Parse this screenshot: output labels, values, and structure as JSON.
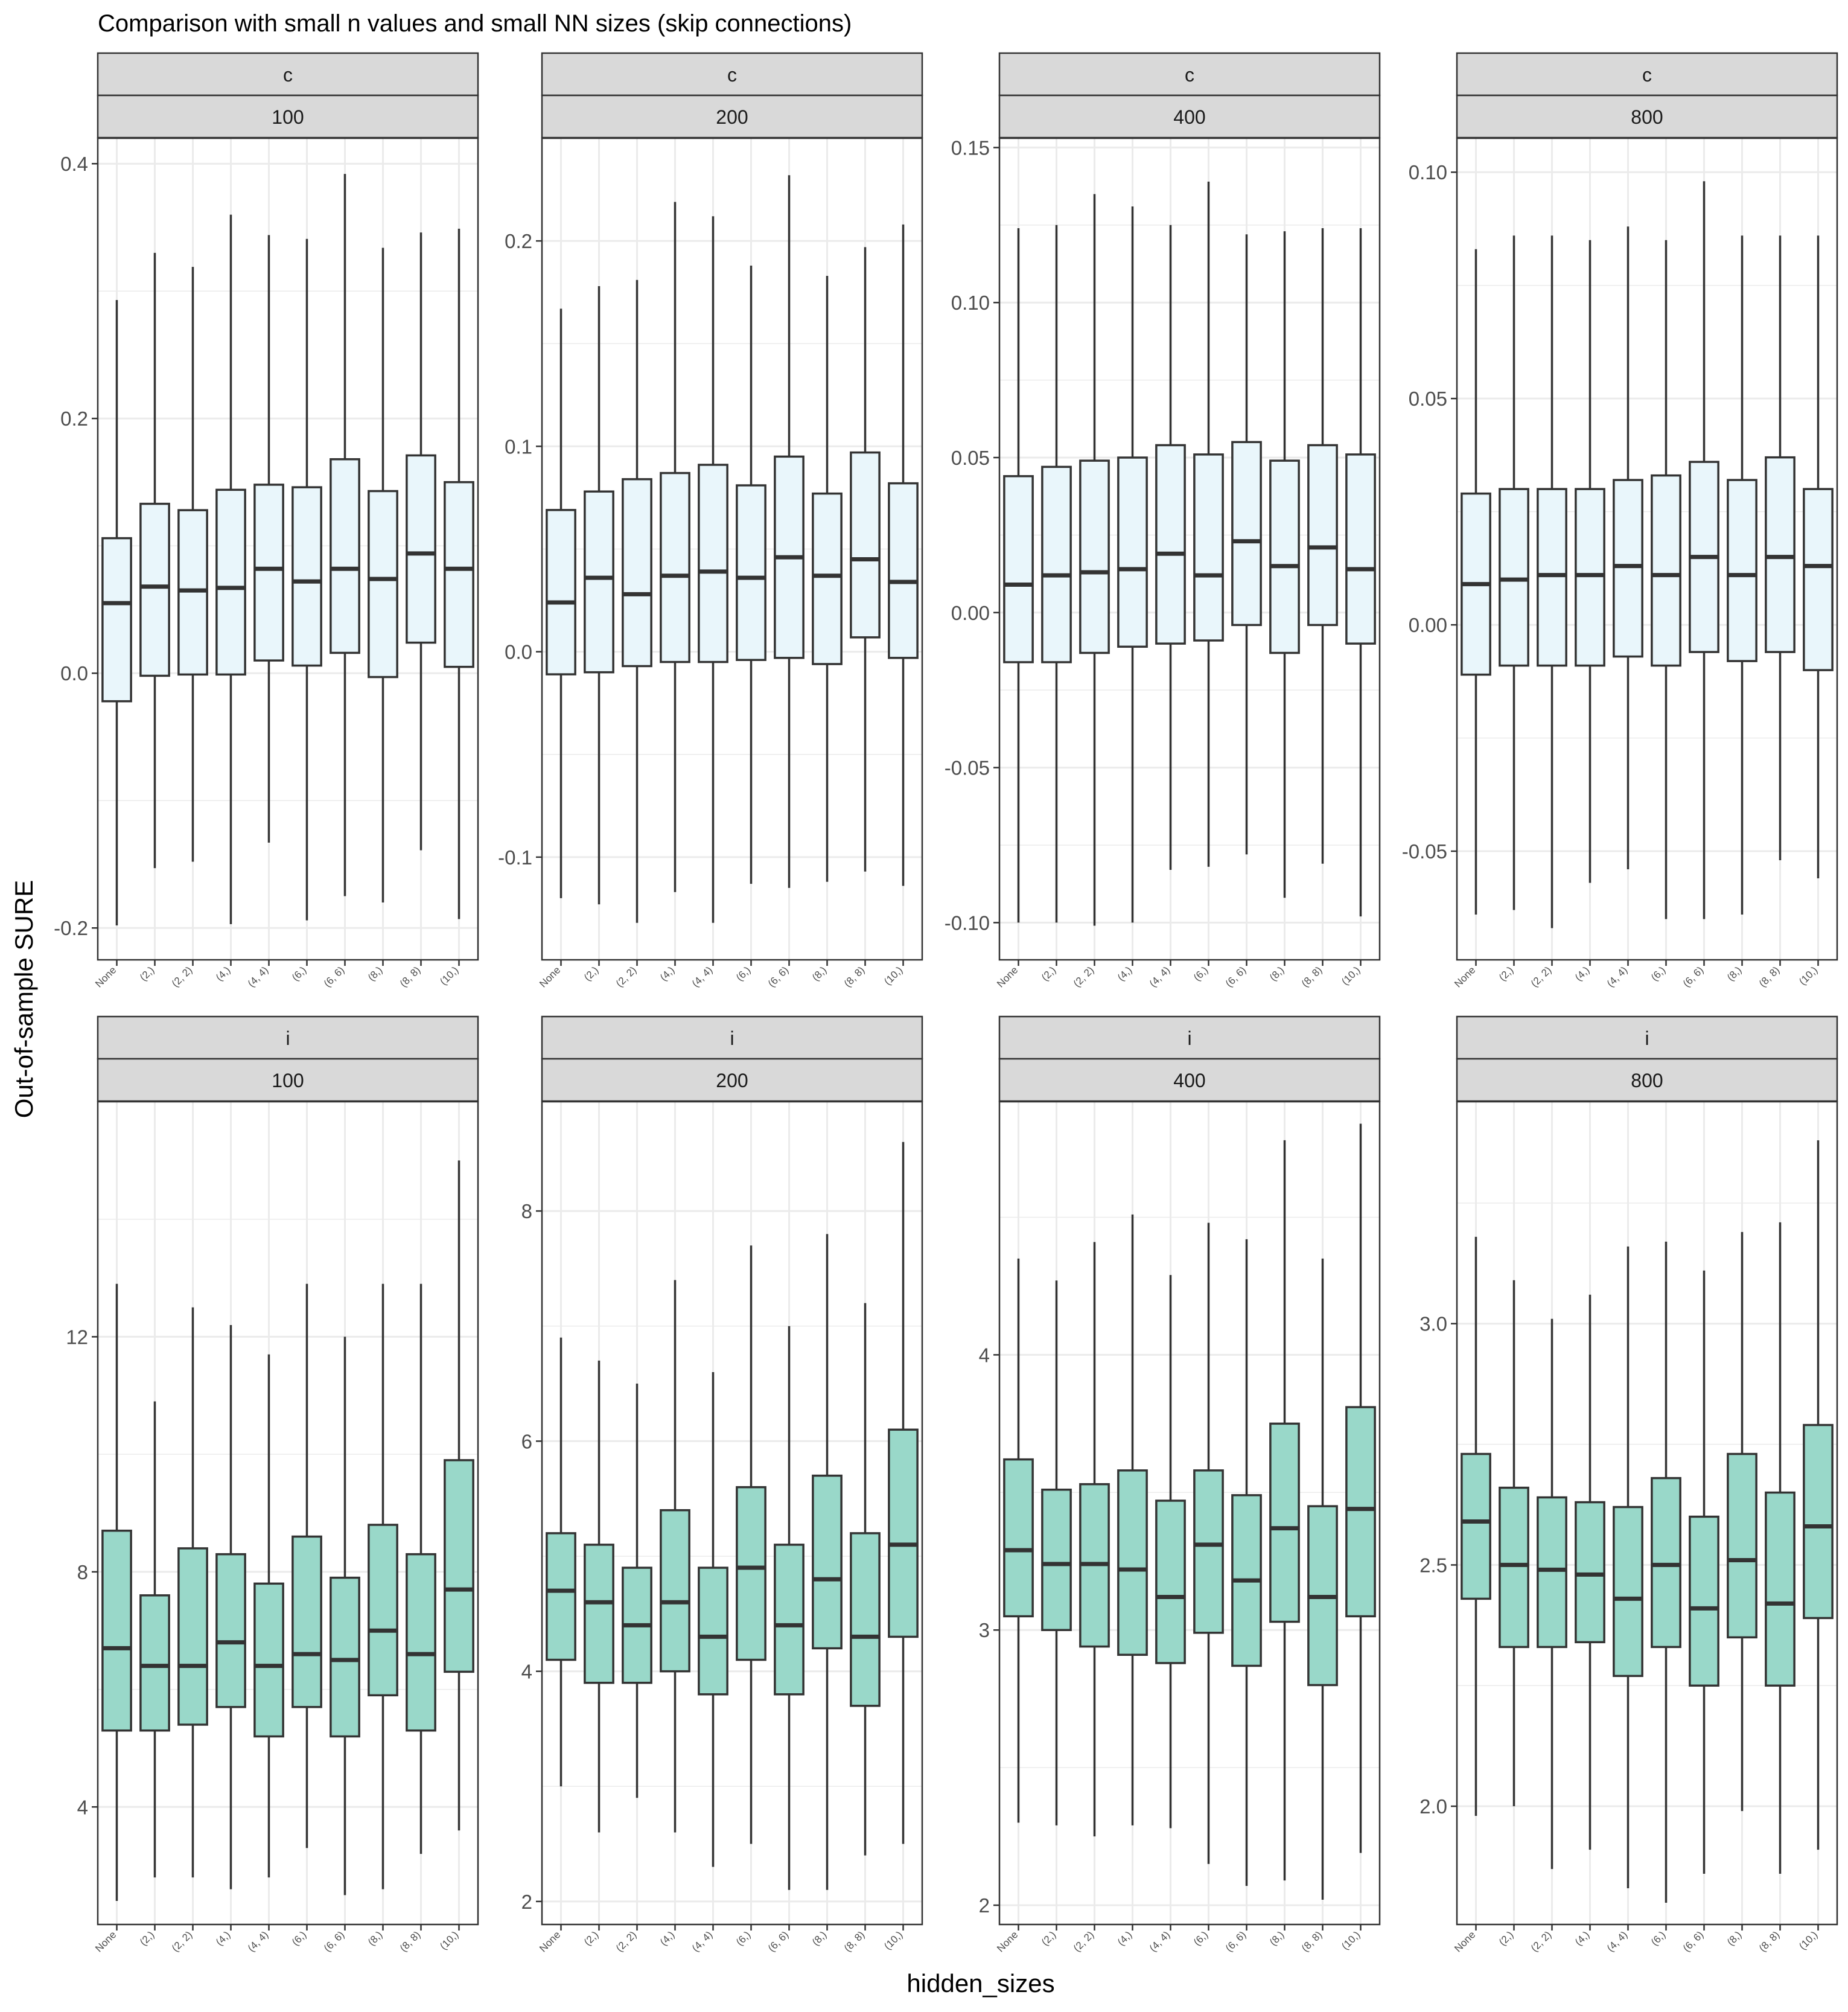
{
  "title": "Comparison with small n values and small NN sizes (skip connections)",
  "xlabel": "hidden_sizes",
  "ylabel": "Out-of-sample SURE",
  "colors": {
    "fill_c": "#e9f6fb",
    "fill_i": "#99d8c9",
    "strip_bg": "#d9d9d9",
    "box_line": "#333333",
    "grid": "#ebebeb"
  },
  "chart_data": [
    {
      "type": "boxplot",
      "row_label": "c",
      "col_label": "100",
      "categories": [
        "None",
        "(2,)",
        "(2, 2)",
        "(4,)",
        "(4, 4)",
        "(6,)",
        "(6, 6)",
        "(8,)",
        "(8, 8)",
        "(10,)"
      ],
      "ylim": [
        -0.225,
        0.42
      ],
      "yticks": [
        -0.2,
        0.0,
        0.2,
        0.4
      ],
      "ytick_labels": [
        "-0.2",
        "0.0",
        "0.2",
        "0.4"
      ],
      "boxes": [
        {
          "min": -0.198,
          "q1": -0.022,
          "median": 0.055,
          "q3": 0.106,
          "max": 0.293
        },
        {
          "min": -0.153,
          "q1": -0.002,
          "median": 0.068,
          "q3": 0.133,
          "max": 0.33
        },
        {
          "min": -0.148,
          "q1": -0.001,
          "median": 0.065,
          "q3": 0.128,
          "max": 0.319
        },
        {
          "min": -0.197,
          "q1": -0.001,
          "median": 0.067,
          "q3": 0.144,
          "max": 0.36
        },
        {
          "min": -0.133,
          "q1": 0.01,
          "median": 0.082,
          "q3": 0.148,
          "max": 0.344
        },
        {
          "min": -0.194,
          "q1": 0.006,
          "median": 0.072,
          "q3": 0.146,
          "max": 0.341
        },
        {
          "min": -0.175,
          "q1": 0.016,
          "median": 0.082,
          "q3": 0.168,
          "max": 0.392
        },
        {
          "min": -0.18,
          "q1": -0.003,
          "median": 0.074,
          "q3": 0.143,
          "max": 0.334
        },
        {
          "min": -0.139,
          "q1": 0.024,
          "median": 0.094,
          "q3": 0.171,
          "max": 0.346
        },
        {
          "min": -0.193,
          "q1": 0.005,
          "median": 0.082,
          "q3": 0.15,
          "max": 0.349
        }
      ]
    },
    {
      "type": "boxplot",
      "row_label": "c",
      "col_label": "200",
      "categories": [
        "None",
        "(2,)",
        "(2, 2)",
        "(4,)",
        "(4, 4)",
        "(6,)",
        "(6, 6)",
        "(8,)",
        "(8, 8)",
        "(10,)"
      ],
      "ylim": [
        -0.15,
        0.25
      ],
      "yticks": [
        -0.1,
        0.0,
        0.1,
        0.2
      ],
      "ytick_labels": [
        "-0.1",
        "0.0",
        "0.1",
        "0.2"
      ],
      "boxes": [
        {
          "min": -0.12,
          "q1": -0.011,
          "median": 0.024,
          "q3": 0.069,
          "max": 0.167
        },
        {
          "min": -0.123,
          "q1": -0.01,
          "median": 0.036,
          "q3": 0.078,
          "max": 0.178
        },
        {
          "min": -0.132,
          "q1": -0.007,
          "median": 0.028,
          "q3": 0.084,
          "max": 0.181
        },
        {
          "min": -0.117,
          "q1": -0.005,
          "median": 0.037,
          "q3": 0.087,
          "max": 0.219
        },
        {
          "min": -0.132,
          "q1": -0.005,
          "median": 0.039,
          "q3": 0.091,
          "max": 0.212
        },
        {
          "min": -0.113,
          "q1": -0.004,
          "median": 0.036,
          "q3": 0.081,
          "max": 0.188
        },
        {
          "min": -0.115,
          "q1": -0.003,
          "median": 0.046,
          "q3": 0.095,
          "max": 0.232
        },
        {
          "min": -0.112,
          "q1": -0.006,
          "median": 0.037,
          "q3": 0.077,
          "max": 0.183
        },
        {
          "min": -0.107,
          "q1": 0.007,
          "median": 0.045,
          "q3": 0.097,
          "max": 0.197
        },
        {
          "min": -0.114,
          "q1": -0.003,
          "median": 0.034,
          "q3": 0.082,
          "max": 0.208
        }
      ]
    },
    {
      "type": "boxplot",
      "row_label": "c",
      "col_label": "400",
      "categories": [
        "None",
        "(2,)",
        "(2, 2)",
        "(4,)",
        "(4, 4)",
        "(6,)",
        "(6, 6)",
        "(8,)",
        "(8, 8)",
        "(10,)"
      ],
      "ylim": [
        -0.112,
        0.153
      ],
      "yticks": [
        -0.1,
        -0.05,
        0.0,
        0.05,
        0.1,
        0.15
      ],
      "ytick_labels": [
        "-0.10",
        "-0.05",
        "0.00",
        "0.05",
        "0.10",
        "0.15"
      ],
      "boxes": [
        {
          "min": -0.1,
          "q1": -0.016,
          "median": 0.009,
          "q3": 0.044,
          "max": 0.124
        },
        {
          "min": -0.1,
          "q1": -0.016,
          "median": 0.012,
          "q3": 0.047,
          "max": 0.125
        },
        {
          "min": -0.101,
          "q1": -0.013,
          "median": 0.013,
          "q3": 0.049,
          "max": 0.135
        },
        {
          "min": -0.1,
          "q1": -0.011,
          "median": 0.014,
          "q3": 0.05,
          "max": 0.131
        },
        {
          "min": -0.083,
          "q1": -0.01,
          "median": 0.019,
          "q3": 0.054,
          "max": 0.125
        },
        {
          "min": -0.082,
          "q1": -0.009,
          "median": 0.012,
          "q3": 0.051,
          "max": 0.139
        },
        {
          "min": -0.078,
          "q1": -0.004,
          "median": 0.023,
          "q3": 0.055,
          "max": 0.122
        },
        {
          "min": -0.092,
          "q1": -0.013,
          "median": 0.015,
          "q3": 0.049,
          "max": 0.123
        },
        {
          "min": -0.081,
          "q1": -0.004,
          "median": 0.021,
          "q3": 0.054,
          "max": 0.124
        },
        {
          "min": -0.098,
          "q1": -0.01,
          "median": 0.014,
          "q3": 0.051,
          "max": 0.124
        }
      ]
    },
    {
      "type": "boxplot",
      "row_label": "c",
      "col_label": "800",
      "categories": [
        "None",
        "(2,)",
        "(2, 2)",
        "(4,)",
        "(4, 4)",
        "(6,)",
        "(6, 6)",
        "(8,)",
        "(8, 8)",
        "(10,)"
      ],
      "ylim": [
        -0.074,
        0.1075
      ],
      "yticks": [
        -0.05,
        0.0,
        0.05,
        0.1
      ],
      "ytick_labels": [
        "-0.05",
        "0.00",
        "0.05",
        "0.10"
      ],
      "boxes": [
        {
          "min": -0.064,
          "q1": -0.011,
          "median": 0.009,
          "q3": 0.029,
          "max": 0.083
        },
        {
          "min": -0.063,
          "q1": -0.009,
          "median": 0.01,
          "q3": 0.03,
          "max": 0.086
        },
        {
          "min": -0.067,
          "q1": -0.009,
          "median": 0.011,
          "q3": 0.03,
          "max": 0.086
        },
        {
          "min": -0.057,
          "q1": -0.009,
          "median": 0.011,
          "q3": 0.03,
          "max": 0.085
        },
        {
          "min": -0.054,
          "q1": -0.007,
          "median": 0.013,
          "q3": 0.032,
          "max": 0.088
        },
        {
          "min": -0.065,
          "q1": -0.009,
          "median": 0.011,
          "q3": 0.033,
          "max": 0.085
        },
        {
          "min": -0.065,
          "q1": -0.006,
          "median": 0.015,
          "q3": 0.036,
          "max": 0.098
        },
        {
          "min": -0.064,
          "q1": -0.008,
          "median": 0.011,
          "q3": 0.032,
          "max": 0.086
        },
        {
          "min": -0.052,
          "q1": -0.006,
          "median": 0.015,
          "q3": 0.037,
          "max": 0.086
        },
        {
          "min": -0.056,
          "q1": -0.01,
          "median": 0.013,
          "q3": 0.03,
          "max": 0.086
        }
      ]
    },
    {
      "type": "boxplot",
      "row_label": "i",
      "col_label": "100",
      "categories": [
        "None",
        "(2,)",
        "(2, 2)",
        "(4,)",
        "(4, 4)",
        "(6,)",
        "(6, 6)",
        "(8,)",
        "(8, 8)",
        "(10,)"
      ],
      "ylim": [
        2.0,
        16.0
      ],
      "yticks": [
        4,
        8,
        12
      ],
      "ytick_labels": [
        "4",
        "8",
        "12"
      ],
      "boxes": [
        {
          "min": 2.4,
          "q1": 5.3,
          "median": 6.7,
          "q3": 8.7,
          "max": 12.9
        },
        {
          "min": 2.8,
          "q1": 5.3,
          "median": 6.4,
          "q3": 7.6,
          "max": 10.9
        },
        {
          "min": 2.8,
          "q1": 5.4,
          "median": 6.4,
          "q3": 8.4,
          "max": 12.5
        },
        {
          "min": 2.6,
          "q1": 5.7,
          "median": 6.8,
          "q3": 8.3,
          "max": 12.2
        },
        {
          "min": 2.8,
          "q1": 5.2,
          "median": 6.4,
          "q3": 7.8,
          "max": 11.7
        },
        {
          "min": 3.3,
          "q1": 5.7,
          "median": 6.6,
          "q3": 8.6,
          "max": 12.9
        },
        {
          "min": 2.5,
          "q1": 5.2,
          "median": 6.5,
          "q3": 7.9,
          "max": 12.0
        },
        {
          "min": 2.6,
          "q1": 5.9,
          "median": 7.0,
          "q3": 8.8,
          "max": 12.9
        },
        {
          "min": 3.2,
          "q1": 5.3,
          "median": 6.6,
          "q3": 8.3,
          "max": 12.9
        },
        {
          "min": 3.6,
          "q1": 6.3,
          "median": 7.7,
          "q3": 9.9,
          "max": 15.0
        }
      ]
    },
    {
      "type": "boxplot",
      "row_label": "i",
      "col_label": "200",
      "categories": [
        "None",
        "(2,)",
        "(2, 2)",
        "(4,)",
        "(4, 4)",
        "(6,)",
        "(6, 6)",
        "(8,)",
        "(8, 8)",
        "(10,)"
      ],
      "ylim": [
        1.8,
        8.95
      ],
      "yticks": [
        2,
        4,
        6,
        8
      ],
      "ytick_labels": [
        "2",
        "4",
        "6",
        "8"
      ],
      "boxes": [
        {
          "min": 3.0,
          "q1": 4.1,
          "median": 4.7,
          "q3": 5.2,
          "max": 6.9
        },
        {
          "min": 2.6,
          "q1": 3.9,
          "median": 4.6,
          "q3": 5.1,
          "max": 6.7
        },
        {
          "min": 2.9,
          "q1": 3.9,
          "median": 4.4,
          "q3": 4.9,
          "max": 6.5
        },
        {
          "min": 2.6,
          "q1": 4.0,
          "median": 4.6,
          "q3": 5.4,
          "max": 7.4
        },
        {
          "min": 2.3,
          "q1": 3.8,
          "median": 4.3,
          "q3": 4.9,
          "max": 6.6
        },
        {
          "min": 2.5,
          "q1": 4.1,
          "median": 4.9,
          "q3": 5.6,
          "max": 7.7
        },
        {
          "min": 2.1,
          "q1": 3.8,
          "median": 4.4,
          "q3": 5.1,
          "max": 7.0
        },
        {
          "min": 2.1,
          "q1": 4.2,
          "median": 4.8,
          "q3": 5.7,
          "max": 7.8
        },
        {
          "min": 2.4,
          "q1": 3.7,
          "median": 4.3,
          "q3": 5.2,
          "max": 7.2
        },
        {
          "min": 2.5,
          "q1": 4.3,
          "median": 5.1,
          "q3": 6.1,
          "max": 8.6
        }
      ]
    },
    {
      "type": "boxplot",
      "row_label": "i",
      "col_label": "400",
      "categories": [
        "None",
        "(2,)",
        "(2, 2)",
        "(4,)",
        "(4, 4)",
        "(6,)",
        "(6, 6)",
        "(8,)",
        "(8, 8)",
        "(10,)"
      ],
      "ylim": [
        1.93,
        4.92
      ],
      "yticks": [
        2,
        3,
        4
      ],
      "ytick_labels": [
        "2",
        "3",
        "4"
      ],
      "boxes": [
        {
          "min": 2.3,
          "q1": 3.05,
          "median": 3.29,
          "q3": 3.62,
          "max": 4.35
        },
        {
          "min": 2.29,
          "q1": 3.0,
          "median": 3.24,
          "q3": 3.51,
          "max": 4.27
        },
        {
          "min": 2.25,
          "q1": 2.94,
          "median": 3.24,
          "q3": 3.53,
          "max": 4.41
        },
        {
          "min": 2.29,
          "q1": 2.91,
          "median": 3.22,
          "q3": 3.58,
          "max": 4.51
        },
        {
          "min": 2.28,
          "q1": 2.88,
          "median": 3.12,
          "q3": 3.47,
          "max": 4.29
        },
        {
          "min": 2.15,
          "q1": 2.99,
          "median": 3.31,
          "q3": 3.58,
          "max": 4.48
        },
        {
          "min": 2.07,
          "q1": 2.87,
          "median": 3.18,
          "q3": 3.49,
          "max": 4.42
        },
        {
          "min": 2.09,
          "q1": 3.03,
          "median": 3.37,
          "q3": 3.75,
          "max": 4.78
        },
        {
          "min": 2.02,
          "q1": 2.8,
          "median": 3.12,
          "q3": 3.45,
          "max": 4.35
        },
        {
          "min": 2.19,
          "q1": 3.05,
          "median": 3.44,
          "q3": 3.81,
          "max": 4.84
        }
      ]
    },
    {
      "type": "boxplot",
      "row_label": "i",
      "col_label": "800",
      "categories": [
        "None",
        "(2,)",
        "(2, 2)",
        "(4,)",
        "(4, 4)",
        "(6,)",
        "(6, 6)",
        "(8,)",
        "(8, 8)",
        "(10,)"
      ],
      "ylim": [
        1.755,
        3.46
      ],
      "yticks": [
        2.0,
        2.5,
        3.0
      ],
      "ytick_labels": [
        "2.0",
        "2.5",
        "3.0"
      ],
      "boxes": [
        {
          "min": 1.98,
          "q1": 2.43,
          "median": 2.59,
          "q3": 2.73,
          "max": 3.18
        },
        {
          "min": 2.0,
          "q1": 2.33,
          "median": 2.5,
          "q3": 2.66,
          "max": 3.09
        },
        {
          "min": 1.87,
          "q1": 2.33,
          "median": 2.49,
          "q3": 2.64,
          "max": 3.01
        },
        {
          "min": 1.91,
          "q1": 2.34,
          "median": 2.48,
          "q3": 2.63,
          "max": 3.06
        },
        {
          "min": 1.83,
          "q1": 2.27,
          "median": 2.43,
          "q3": 2.62,
          "max": 3.16
        },
        {
          "min": 1.8,
          "q1": 2.33,
          "median": 2.5,
          "q3": 2.68,
          "max": 3.17
        },
        {
          "min": 1.86,
          "q1": 2.25,
          "median": 2.41,
          "q3": 2.6,
          "max": 3.11
        },
        {
          "min": 1.99,
          "q1": 2.35,
          "median": 2.51,
          "q3": 2.73,
          "max": 3.19
        },
        {
          "min": 1.86,
          "q1": 2.25,
          "median": 2.42,
          "q3": 2.65,
          "max": 3.21
        },
        {
          "min": 1.91,
          "q1": 2.39,
          "median": 2.58,
          "q3": 2.79,
          "max": 3.38
        }
      ]
    }
  ]
}
